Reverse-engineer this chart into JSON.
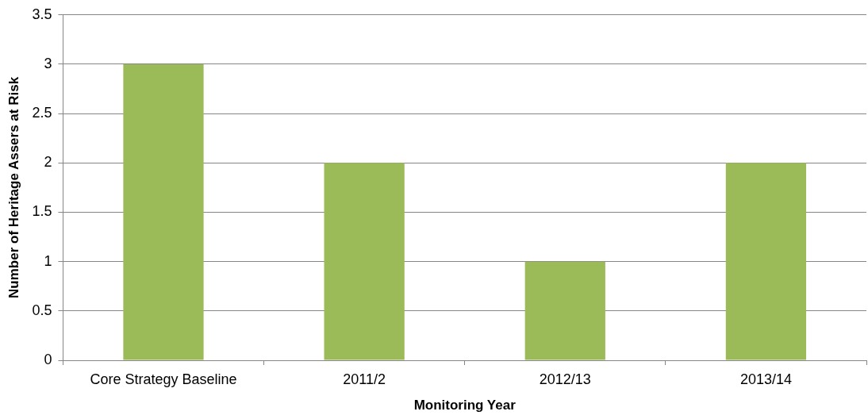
{
  "chart_data": {
    "type": "bar",
    "xlabel": "Monitoring Year",
    "ylabel": "Number of Heritage Assers at Risk",
    "categories": [
      "Core Strategy Baseline",
      "2011/2",
      "2012/13",
      "2013/14"
    ],
    "values": [
      3,
      2,
      1,
      2
    ],
    "color": "#9bbb59",
    "ylim": [
      0,
      3.5
    ],
    "yticks": [
      0,
      0.5,
      1,
      1.5,
      2,
      2.5,
      3,
      3.5
    ],
    "grid": "y",
    "legend": false
  }
}
